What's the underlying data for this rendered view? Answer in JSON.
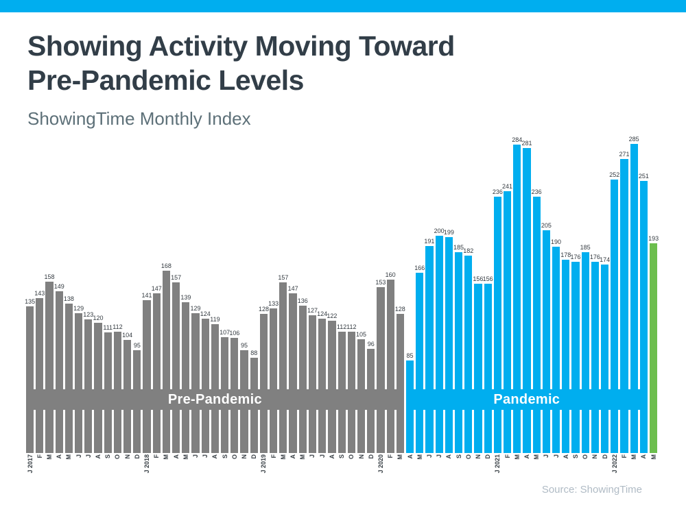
{
  "header": {
    "title_line1": "Showing Activity Moving Toward",
    "title_line2": "Pre-Pandemic Levels",
    "subtitle": "ShowingTime Monthly Index"
  },
  "footer": {
    "source": "Source: ShowingTime"
  },
  "theme": {
    "accent_blue": "#00AEEF",
    "bar_gray": "#808080",
    "bar_green": "#6CBE4E",
    "title_color": "#323e48",
    "subtitle_color": "#5d7078",
    "source_color": "#b0bbc5"
  },
  "chart_data": {
    "type": "bar",
    "title": "Showing Activity Moving Toward Pre-Pandemic Levels",
    "subtitle": "ShowingTime Monthly Index",
    "xlabel": "",
    "ylabel": "",
    "ylim": [
      0,
      300
    ],
    "grid": false,
    "value_labels": true,
    "categories": [
      "J 2017",
      "F",
      "M",
      "A",
      "M",
      "J",
      "J",
      "A",
      "S",
      "O",
      "N",
      "D",
      "J 2018",
      "F",
      "M",
      "A",
      "M",
      "J",
      "J",
      "A",
      "S",
      "O",
      "N",
      "D",
      "J 2019",
      "F",
      "M",
      "A",
      "M",
      "J",
      "J",
      "A",
      "S",
      "O",
      "N",
      "D",
      "J 2020",
      "F",
      "M",
      "A",
      "M",
      "J",
      "J",
      "A",
      "S",
      "O",
      "N",
      "D",
      "J 2021",
      "F",
      "M",
      "A",
      "M",
      "J",
      "J",
      "A",
      "S",
      "O",
      "N",
      "D",
      "J 2022",
      "F",
      "M",
      "A",
      "M"
    ],
    "values": [
      135,
      143,
      158,
      149,
      138,
      129,
      123,
      120,
      111,
      112,
      104,
      95,
      141,
      147,
      168,
      157,
      139,
      129,
      124,
      119,
      107,
      106,
      95,
      88,
      128,
      133,
      157,
      147,
      136,
      127,
      124,
      122,
      112,
      112,
      105,
      96,
      153,
      160,
      128,
      85,
      166,
      191,
      200,
      199,
      185,
      182,
      156,
      156,
      236,
      241,
      284,
      281,
      236,
      205,
      190,
      178,
      176,
      185,
      176,
      174,
      252,
      271,
      285,
      251,
      193
    ],
    "segments": [
      {
        "band_label": "Pre-Pandemic",
        "color": "#808080",
        "count": 39
      },
      {
        "band_label": "Pandemic",
        "color": "#00AEEF",
        "count": 25
      },
      {
        "band_label": "",
        "color": "#6CBE4E",
        "count": 1
      }
    ]
  }
}
